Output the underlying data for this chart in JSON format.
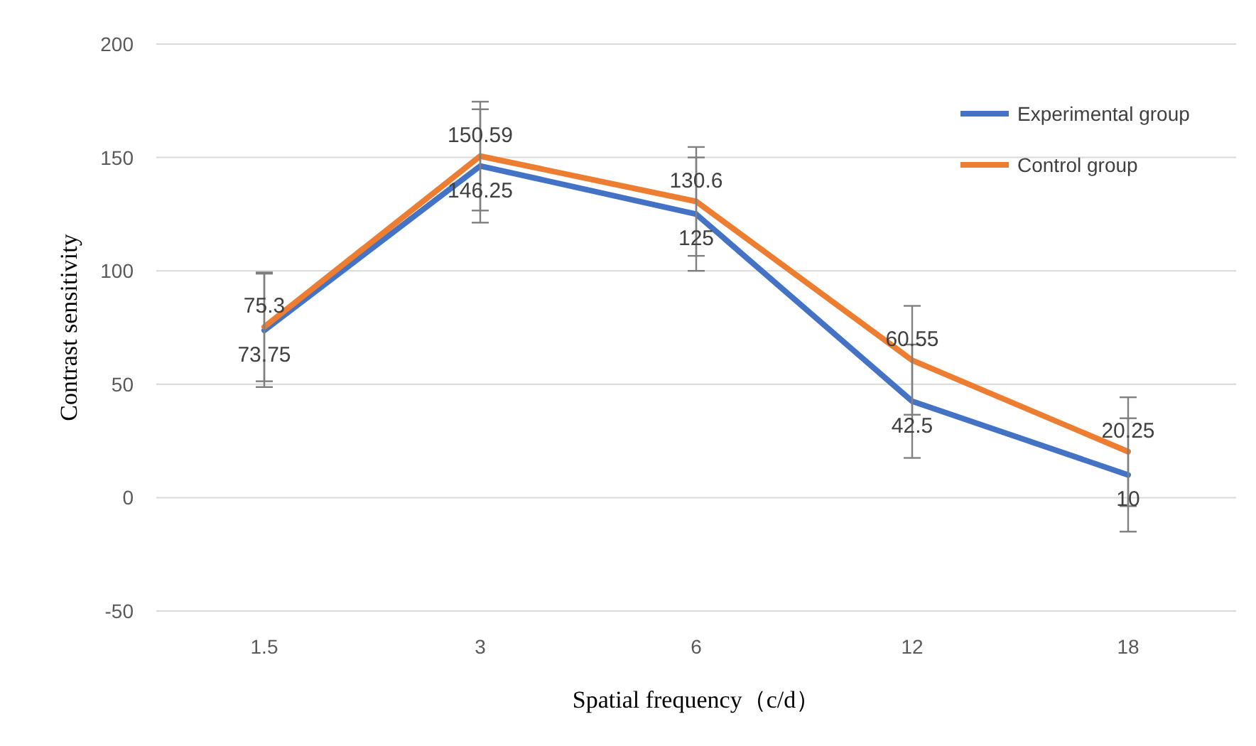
{
  "chart_data": {
    "type": "line",
    "xlabel": "Spatial frequency（c/d）",
    "ylabel": "Contrast sensitivity",
    "categories": [
      "1.5",
      "3",
      "6",
      "12",
      "18"
    ],
    "ylim": [
      -50,
      200
    ],
    "yticks": [
      -50,
      0,
      50,
      100,
      150,
      200
    ],
    "grid": "y",
    "legend": "top right",
    "data_labels": true,
    "marker": "none",
    "line_style": "solid",
    "series": [
      {
        "name": "Experimental group",
        "color": "#4472c4",
        "values": [
          73.75,
          146.25,
          125,
          42.5,
          10
        ],
        "errors": [
          25,
          25,
          25,
          25,
          25
        ]
      },
      {
        "name": "Control group",
        "color": "#ed7d31",
        "values": [
          75.3,
          150.59,
          130.6,
          60.55,
          20.25
        ],
        "errors": [
          24,
          24,
          24,
          24,
          24
        ]
      }
    ]
  }
}
